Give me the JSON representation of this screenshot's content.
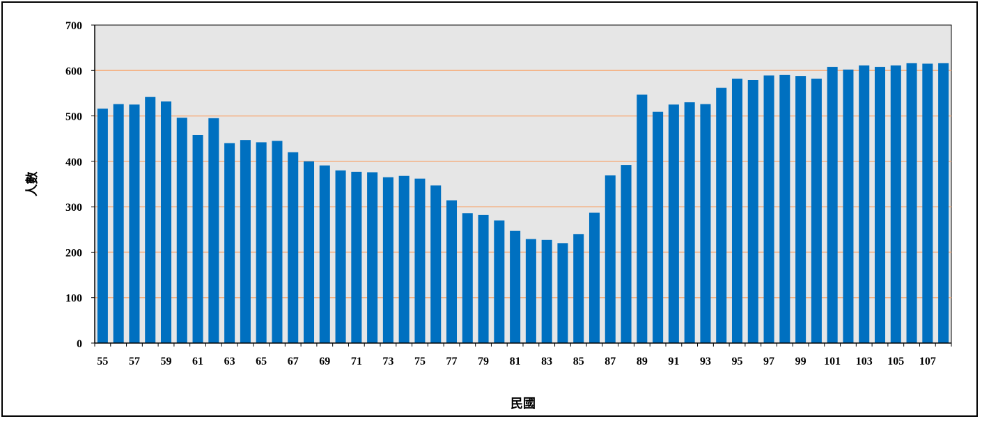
{
  "chart_data": {
    "type": "bar",
    "title": "",
    "xlabel": "民國",
    "ylabel": "人數",
    "ylim": [
      0,
      700
    ],
    "y_ticks": [
      0,
      100,
      200,
      300,
      400,
      500,
      600,
      700
    ],
    "x_tick_labels": [
      "55",
      "57",
      "59",
      "61",
      "63",
      "65",
      "67",
      "69",
      "71",
      "73",
      "75",
      "77",
      "79",
      "81",
      "83",
      "85",
      "87",
      "89",
      "91",
      "93",
      "95",
      "97",
      "99",
      "101",
      "103",
      "105",
      "107"
    ],
    "grid": "horizontal",
    "categories": [
      "55",
      "56",
      "57",
      "58",
      "59",
      "60",
      "61",
      "62",
      "63",
      "64",
      "65",
      "66",
      "67",
      "68",
      "69",
      "70",
      "71",
      "72",
      "73",
      "74",
      "75",
      "76",
      "77",
      "78",
      "79",
      "80",
      "81",
      "82",
      "83",
      "84",
      "85",
      "86",
      "87",
      "88",
      "89",
      "90",
      "91",
      "92",
      "93",
      "94",
      "95",
      "96",
      "97",
      "98",
      "99",
      "100",
      "101",
      "102",
      "103",
      "104",
      "105",
      "106",
      "107",
      "108"
    ],
    "values": [
      516,
      526,
      525,
      542,
      532,
      496,
      458,
      495,
      440,
      447,
      442,
      445,
      420,
      400,
      391,
      380,
      377,
      376,
      365,
      368,
      362,
      347,
      314,
      286,
      282,
      270,
      247,
      229,
      227,
      220,
      240,
      287,
      369,
      392,
      547,
      509,
      525,
      530,
      526,
      562,
      582,
      579,
      589,
      590,
      588,
      582,
      608,
      602,
      611,
      608,
      611,
      616,
      615,
      616
    ],
    "colors": {
      "bar": "#0070C0",
      "plot_background": "#E6E6E6",
      "gridline": "#F4B183",
      "axis": "#000000"
    }
  }
}
